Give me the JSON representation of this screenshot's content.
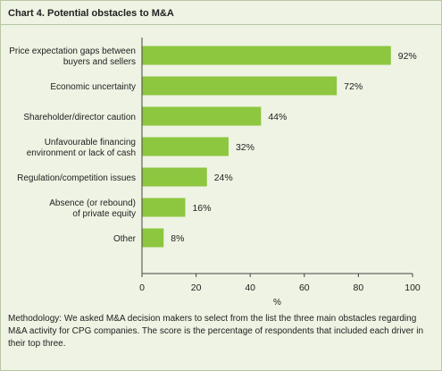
{
  "chart_data": {
    "type": "bar",
    "orientation": "horizontal",
    "title": "Chart 4. Potential obstacles to M&A",
    "categories": [
      [
        "Price expectation gaps between",
        "buyers and sellers"
      ],
      [
        "Economic uncertainty"
      ],
      [
        "Shareholder/director caution"
      ],
      [
        "Unfavourable financing",
        "environment or lack of cash"
      ],
      [
        "Regulation/competition issues"
      ],
      [
        "Absence (or rebound)",
        "of private equity"
      ],
      [
        "Other"
      ]
    ],
    "values": [
      92,
      72,
      44,
      32,
      24,
      16,
      8
    ],
    "data_labels": [
      "92%",
      "72%",
      "44%",
      "32%",
      "24%",
      "16%",
      "8%"
    ],
    "xlabel": "%",
    "xlim": [
      0,
      100
    ],
    "xticks": [
      0,
      20,
      40,
      60,
      80,
      100
    ],
    "grid": false,
    "legend": "none",
    "bar_color": "#8dc63f"
  },
  "methodology": "Methodology: We asked M&A decision makers to select from the list the three main obstacles regarding M&A activity for CPG companies. The score is the percentage of respondents that included each driver in their top three."
}
